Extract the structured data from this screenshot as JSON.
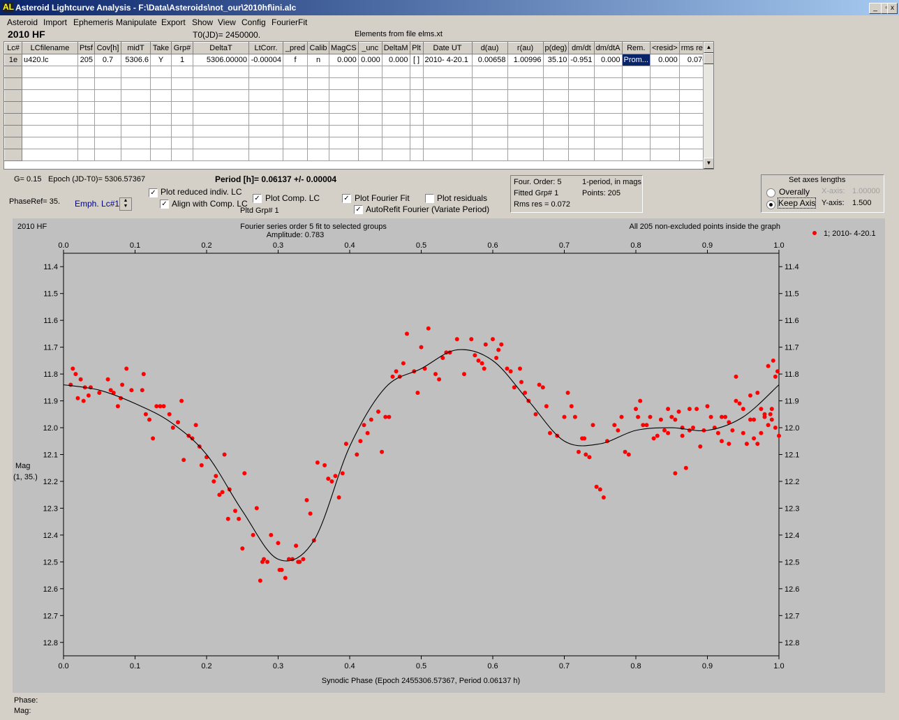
{
  "window": {
    "title": "Asteroid Lightcurve Analysis - F:\\Data\\Asteroids\\not_our\\2010hf\\ini.alc",
    "app_icon": "AL",
    "controls": {
      "minimize": "_",
      "restore": "▫",
      "close": "x"
    }
  },
  "menu": [
    "Asteroid",
    "Import",
    "Ephemeris",
    "Manipulate",
    "Export",
    "Show",
    "View",
    "Config",
    "FourierFit"
  ],
  "header": {
    "object": "2010 HF",
    "t0": "T0(JD)= 2450000.",
    "elements": "Elements from file elms.xt"
  },
  "grid": {
    "columns": [
      "Lc#",
      "LCfilename",
      "Ptsf",
      "Cov[h]",
      "midT",
      "Take",
      "Grp#",
      "DeltaT",
      "LtCorr.",
      "_pred",
      "Calib",
      "MagCS",
      "_unc",
      "DeltaM",
      "Plt",
      "Date UT",
      "d(au)",
      "r(au)",
      "p(deg)",
      "dm/dt",
      "dm/dtA",
      "Rem.",
      "<resid>",
      "rms res"
    ],
    "rows": [
      [
        "1e",
        "u420.lc",
        "205",
        "0.7",
        "5306.6",
        "Y",
        "1",
        "5306.00000",
        "-0.00004",
        "f",
        "n",
        "0.000",
        "0.000",
        "0.000",
        "[ ]",
        "2010- 4-20.1",
        "0.00658",
        "1.00996",
        "35.10",
        "-0.951",
        "0.000",
        "Prom...",
        "0.000",
        "0.070"
      ]
    ],
    "empty_rows": 8
  },
  "info": {
    "g": "G= 0.15",
    "epoch": "Epoch (JD-T0)= 5306.57367",
    "period": "Period [h]= 0.06137 +/- 0.00004",
    "phaseref": "PhaseRef= 35.",
    "emph": "Emph. Lc#1:",
    "pltd_grp": "Pltd Grp#  1"
  },
  "checkboxes": {
    "plot_reduced": {
      "label": "Plot reduced indiv. LC",
      "checked": true
    },
    "align_comp": {
      "label": "Align with Comp. LC",
      "checked": true
    },
    "plot_comp": {
      "label": "Plot Comp. LC",
      "checked": true
    },
    "plot_fourier": {
      "label": "Plot Fourier Fit",
      "checked": true
    },
    "plot_residuals": {
      "label": "Plot residuals",
      "checked": false
    },
    "autorefit": {
      "label": "AutoRefit Fourier (Variate Period)",
      "checked": true
    }
  },
  "fourier_box": {
    "order": "Four. Order:  5",
    "mode": "1-period, in mags",
    "fitted": "Fitted Grp# 1",
    "points": "Points: 205",
    "rms": "Rms res     = 0.072"
  },
  "axes_box": {
    "title": "Set axes lengths",
    "overally": "Overally",
    "keep_axis": "Keep Axis",
    "x_axis_label": "X-axis:",
    "x_axis_value": "1.00000",
    "y_axis_label": "Y-axis:",
    "y_axis_value": "1.500",
    "selected": "keep_axis"
  },
  "status": {
    "phase": "Phase:",
    "mag": "Mag:"
  },
  "colors": {
    "points": "#ff0000",
    "fit": "#000000",
    "plot_bg": "#c0c0c0",
    "selection": "#0a246a"
  },
  "chart_data": {
    "type": "scatter",
    "object_label": "2010 HF",
    "title": "Fourier series order 5 fit to selected groups",
    "subtitle": "Amplitude: 0.783",
    "note": "All 205 non-excluded points inside the graph",
    "legend": "1; 2010- 4-20.1",
    "legend_position": "top-right",
    "xlabel": "Synodic Phase (Epoch 2455306.57367, Period 0.06137 h)",
    "ylabel": "Mag",
    "ylabel2": "(1, 35.)",
    "xlim": [
      0,
      1
    ],
    "ylim": [
      12.85,
      11.35
    ],
    "y_inverted": true,
    "x_ticks": [
      "0.0",
      "0.1",
      "0.2",
      "0.3",
      "0.4",
      "0.5",
      "0.6",
      "0.7",
      "0.8",
      "0.9",
      "1.0"
    ],
    "y_ticks": [
      "11.4",
      "11.5",
      "11.6",
      "11.7",
      "11.8",
      "11.9",
      "12.0",
      "12.1",
      "12.2",
      "12.3",
      "12.4",
      "12.5",
      "12.6",
      "12.7",
      "12.8"
    ],
    "fit_curve": {
      "x": [
        0.0,
        0.05,
        0.1,
        0.15,
        0.2,
        0.25,
        0.3,
        0.35,
        0.4,
        0.45,
        0.5,
        0.55,
        0.6,
        0.65,
        0.7,
        0.75,
        0.8,
        0.85,
        0.9,
        0.95,
        1.0
      ],
      "y": [
        11.84,
        11.86,
        11.91,
        11.98,
        12.1,
        12.31,
        12.49,
        12.42,
        12.07,
        11.85,
        11.78,
        11.71,
        11.75,
        11.9,
        12.05,
        12.06,
        12.01,
        12.0,
        12.01,
        11.96,
        11.84
      ]
    },
    "points": [
      [
        0.01,
        11.84
      ],
      [
        0.013,
        11.78
      ],
      [
        0.017,
        11.8
      ],
      [
        0.02,
        11.89
      ],
      [
        0.024,
        11.82
      ],
      [
        0.028,
        11.9
      ],
      [
        0.03,
        11.85
      ],
      [
        0.035,
        11.88
      ],
      [
        0.038,
        11.85
      ],
      [
        0.05,
        11.87
      ],
      [
        0.062,
        11.82
      ],
      [
        0.066,
        11.86
      ],
      [
        0.07,
        11.87
      ],
      [
        0.076,
        11.92
      ],
      [
        0.08,
        11.89
      ],
      [
        0.082,
        11.84
      ],
      [
        0.088,
        11.78
      ],
      [
        0.095,
        11.86
      ],
      [
        0.11,
        11.86
      ],
      [
        0.112,
        11.8
      ],
      [
        0.115,
        11.95
      ],
      [
        0.12,
        11.97
      ],
      [
        0.125,
        12.04
      ],
      [
        0.13,
        11.92
      ],
      [
        0.135,
        11.92
      ],
      [
        0.14,
        11.92
      ],
      [
        0.148,
        11.95
      ],
      [
        0.153,
        12.0
      ],
      [
        0.16,
        11.98
      ],
      [
        0.165,
        11.9
      ],
      [
        0.168,
        12.12
      ],
      [
        0.175,
        12.03
      ],
      [
        0.18,
        12.04
      ],
      [
        0.185,
        11.99
      ],
      [
        0.19,
        12.07
      ],
      [
        0.193,
        12.14
      ],
      [
        0.2,
        12.11
      ],
      [
        0.21,
        12.2
      ],
      [
        0.213,
        12.18
      ],
      [
        0.218,
        12.25
      ],
      [
        0.222,
        12.24
      ],
      [
        0.225,
        12.1
      ],
      [
        0.23,
        12.34
      ],
      [
        0.232,
        12.23
      ],
      [
        0.24,
        12.31
      ],
      [
        0.245,
        12.34
      ],
      [
        0.25,
        12.45
      ],
      [
        0.253,
        12.17
      ],
      [
        0.265,
        12.4
      ],
      [
        0.27,
        12.3
      ],
      [
        0.275,
        12.57
      ],
      [
        0.278,
        12.5
      ],
      [
        0.28,
        12.49
      ],
      [
        0.285,
        12.5
      ],
      [
        0.29,
        12.4
      ],
      [
        0.3,
        12.43
      ],
      [
        0.302,
        12.53
      ],
      [
        0.305,
        12.53
      ],
      [
        0.31,
        12.56
      ],
      [
        0.315,
        12.49
      ],
      [
        0.32,
        12.49
      ],
      [
        0.325,
        12.44
      ],
      [
        0.328,
        12.5
      ],
      [
        0.33,
        12.5
      ],
      [
        0.335,
        12.49
      ],
      [
        0.34,
        12.27
      ],
      [
        0.345,
        12.32
      ],
      [
        0.35,
        12.42
      ],
      [
        0.355,
        12.13
      ],
      [
        0.365,
        12.14
      ],
      [
        0.37,
        12.19
      ],
      [
        0.375,
        12.2
      ],
      [
        0.38,
        12.18
      ],
      [
        0.385,
        12.26
      ],
      [
        0.39,
        12.17
      ],
      [
        0.395,
        12.06
      ],
      [
        0.41,
        12.1
      ],
      [
        0.415,
        12.05
      ],
      [
        0.42,
        11.99
      ],
      [
        0.425,
        12.02
      ],
      [
        0.43,
        11.97
      ],
      [
        0.44,
        11.94
      ],
      [
        0.445,
        12.09
      ],
      [
        0.45,
        11.96
      ],
      [
        0.455,
        11.96
      ],
      [
        0.46,
        11.81
      ],
      [
        0.465,
        11.79
      ],
      [
        0.47,
        11.81
      ],
      [
        0.475,
        11.76
      ],
      [
        0.48,
        11.65
      ],
      [
        0.49,
        11.79
      ],
      [
        0.495,
        11.87
      ],
      [
        0.5,
        11.7
      ],
      [
        0.505,
        11.78
      ],
      [
        0.51,
        11.63
      ],
      [
        0.52,
        11.8
      ],
      [
        0.525,
        11.82
      ],
      [
        0.53,
        11.74
      ],
      [
        0.535,
        11.72
      ],
      [
        0.54,
        11.72
      ],
      [
        0.55,
        11.67
      ],
      [
        0.56,
        11.8
      ],
      [
        0.57,
        11.67
      ],
      [
        0.575,
        11.73
      ],
      [
        0.58,
        11.75
      ],
      [
        0.585,
        11.76
      ],
      [
        0.588,
        11.78
      ],
      [
        0.59,
        11.69
      ],
      [
        0.6,
        11.67
      ],
      [
        0.605,
        11.74
      ],
      [
        0.608,
        11.71
      ],
      [
        0.612,
        11.69
      ],
      [
        0.62,
        11.78
      ],
      [
        0.625,
        11.79
      ],
      [
        0.63,
        11.85
      ],
      [
        0.638,
        11.78
      ],
      [
        0.64,
        11.83
      ],
      [
        0.645,
        11.87
      ],
      [
        0.65,
        11.9
      ],
      [
        0.66,
        11.95
      ],
      [
        0.665,
        11.84
      ],
      [
        0.67,
        11.85
      ],
      [
        0.675,
        11.92
      ],
      [
        0.68,
        12.02
      ],
      [
        0.69,
        12.03
      ],
      [
        0.7,
        11.96
      ],
      [
        0.705,
        11.87
      ],
      [
        0.71,
        11.92
      ],
      [
        0.715,
        11.96
      ],
      [
        0.72,
        12.09
      ],
      [
        0.725,
        12.04
      ],
      [
        0.728,
        12.04
      ],
      [
        0.73,
        12.1
      ],
      [
        0.735,
        12.11
      ],
      [
        0.74,
        11.99
      ],
      [
        0.745,
        12.22
      ],
      [
        0.75,
        12.23
      ],
      [
        0.755,
        12.26
      ],
      [
        0.76,
        12.05
      ],
      [
        0.77,
        11.99
      ],
      [
        0.775,
        12.01
      ],
      [
        0.78,
        11.96
      ],
      [
        0.785,
        12.09
      ],
      [
        0.79,
        12.1
      ],
      [
        0.8,
        11.93
      ],
      [
        0.803,
        11.96
      ],
      [
        0.806,
        11.9
      ],
      [
        0.81,
        11.99
      ],
      [
        0.815,
        11.99
      ],
      [
        0.82,
        11.96
      ],
      [
        0.825,
        12.04
      ],
      [
        0.83,
        12.03
      ],
      [
        0.835,
        11.97
      ],
      [
        0.84,
        12.01
      ],
      [
        0.845,
        11.93
      ],
      [
        0.85,
        11.96
      ],
      [
        0.855,
        12.17
      ],
      [
        0.86,
        11.94
      ],
      [
        0.865,
        12.03
      ],
      [
        0.87,
        12.15
      ],
      [
        0.875,
        11.93
      ],
      [
        0.88,
        12.0
      ],
      [
        0.89,
        12.07
      ],
      [
        0.9,
        11.92
      ],
      [
        0.91,
        12.0
      ],
      [
        0.915,
        12.02
      ],
      [
        0.92,
        12.05
      ],
      [
        0.925,
        11.96
      ],
      [
        0.93,
        12.06
      ],
      [
        0.935,
        12.01
      ],
      [
        0.94,
        11.81
      ],
      [
        0.95,
        12.02
      ],
      [
        0.955,
        12.06
      ],
      [
        0.96,
        11.97
      ],
      [
        0.965,
        12.04
      ],
      [
        0.97,
        12.06
      ],
      [
        0.975,
        12.02
      ],
      [
        0.98,
        11.95
      ],
      [
        0.985,
        11.99
      ],
      [
        0.99,
        11.93
      ],
      [
        0.995,
        12.0
      ],
      [
        1.0,
        12.03
      ],
      [
        0.92,
        11.96
      ],
      [
        0.93,
        11.98
      ],
      [
        0.94,
        11.9
      ],
      [
        0.945,
        11.91
      ],
      [
        0.95,
        11.93
      ],
      [
        0.96,
        11.88
      ],
      [
        0.965,
        11.97
      ],
      [
        0.97,
        11.87
      ],
      [
        0.975,
        11.93
      ],
      [
        0.98,
        11.96
      ],
      [
        0.985,
        11.77
      ],
      [
        0.988,
        11.95
      ],
      [
        0.99,
        11.97
      ],
      [
        0.992,
        11.75
      ],
      [
        0.995,
        11.81
      ],
      [
        0.998,
        11.79
      ],
      [
        0.905,
        11.96
      ],
      [
        0.895,
        12.01
      ],
      [
        0.885,
        11.93
      ],
      [
        0.875,
        12.01
      ],
      [
        0.865,
        12.0
      ],
      [
        0.855,
        11.97
      ],
      [
        0.845,
        12.02
      ]
    ]
  }
}
